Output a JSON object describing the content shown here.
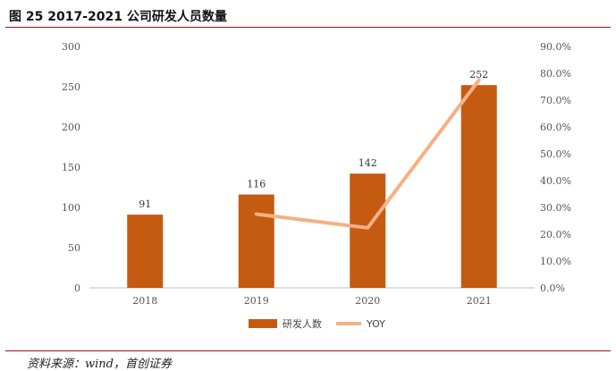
{
  "header": {
    "title": "图 25 2017-2021 公司研发人员数量"
  },
  "footer": {
    "source": "资料来源：wind，首创证券"
  },
  "chart_data": {
    "type": "bar",
    "categories": [
      "2018",
      "2019",
      "2020",
      "2021"
    ],
    "series": [
      {
        "name": "研发人数",
        "kind": "bar",
        "axis": "left",
        "color": "#c55a11",
        "values": [
          91,
          116,
          142,
          252
        ]
      },
      {
        "name": "YOY",
        "kind": "line",
        "axis": "right",
        "color": "#f4b183",
        "values": [
          null,
          0.275,
          0.224,
          0.775
        ]
      }
    ],
    "ylim": [
      0,
      300
    ],
    "yticks": [
      "0",
      "50",
      "100",
      "150",
      "200",
      "250",
      "300"
    ],
    "y2lim": [
      0,
      0.9
    ],
    "y2ticks": [
      "0.0%",
      "10.0%",
      "20.0%",
      "30.0%",
      "40.0%",
      "50.0%",
      "60.0%",
      "70.0%",
      "80.0%",
      "90.0%"
    ],
    "data_labels": [
      "91",
      "116",
      "142",
      "252"
    ],
    "legend_position": "bottom",
    "grid": false
  }
}
